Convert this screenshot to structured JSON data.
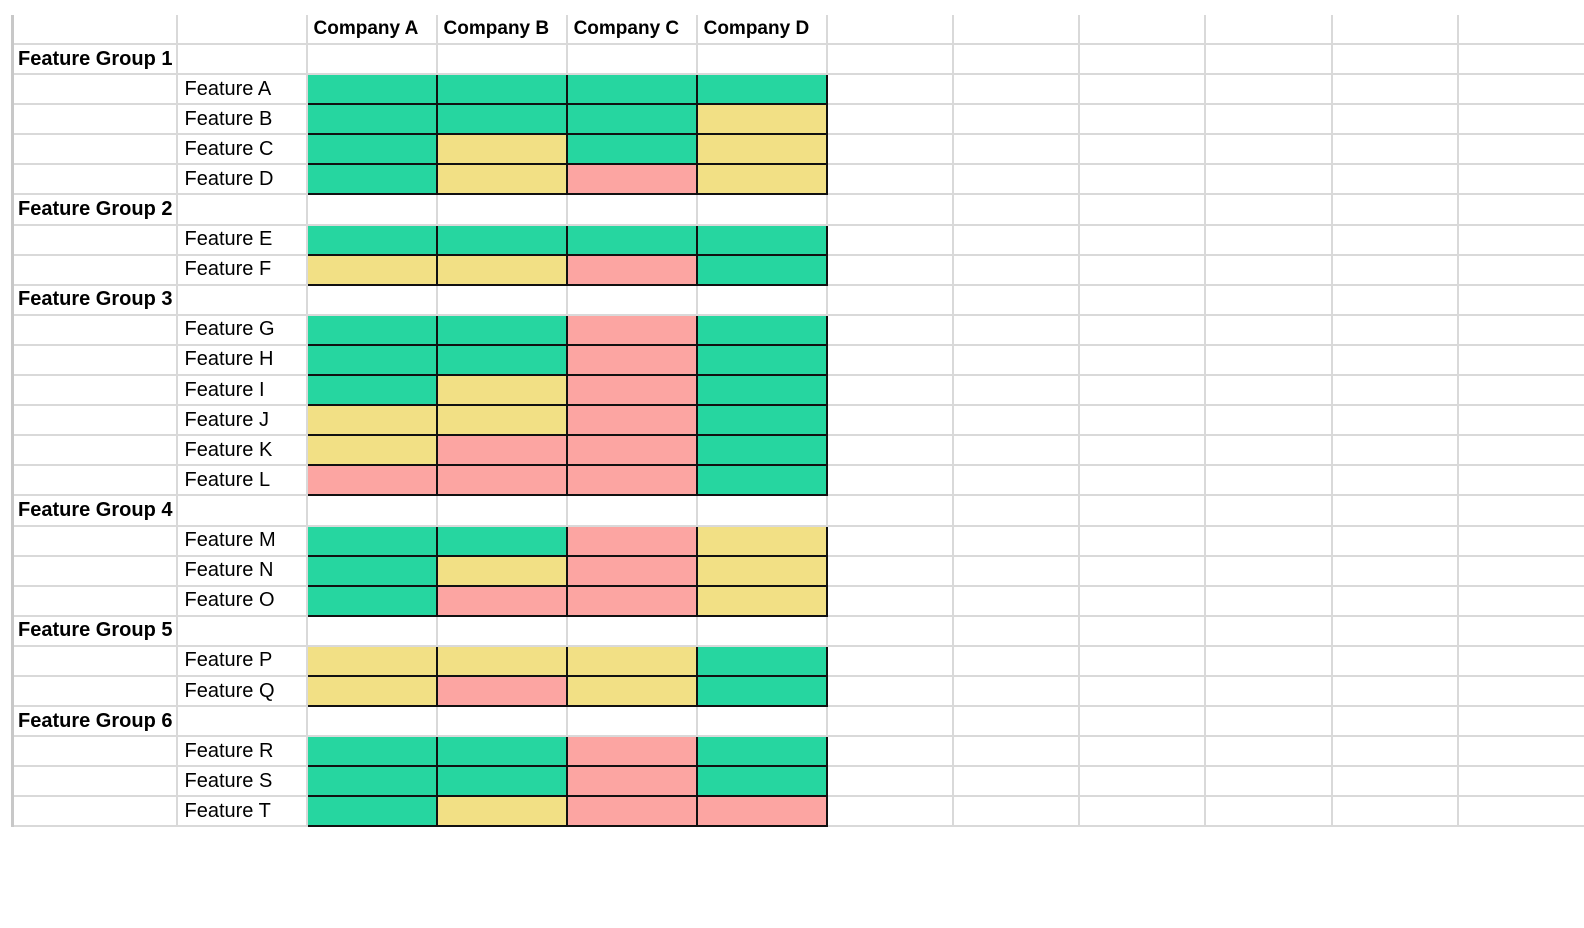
{
  "sheet": {
    "header": {
      "companies": [
        "Company A",
        "Company B",
        "Company C",
        "Company D"
      ]
    },
    "legend_colors": {
      "green": "#26d6a0",
      "yellow": "#f2e085",
      "red": "#fca5a2"
    },
    "groups": [
      {
        "name": "Feature Group 1",
        "features": [
          {
            "name": "Feature A",
            "values": [
              "green",
              "green",
              "green",
              "green"
            ]
          },
          {
            "name": "Feature B",
            "values": [
              "green",
              "green",
              "green",
              "yellow"
            ]
          },
          {
            "name": "Feature C",
            "values": [
              "green",
              "yellow",
              "green",
              "yellow"
            ]
          },
          {
            "name": "Feature D",
            "values": [
              "green",
              "yellow",
              "red",
              "yellow"
            ]
          }
        ]
      },
      {
        "name": "Feature Group 2",
        "features": [
          {
            "name": "Feature E",
            "values": [
              "green",
              "green",
              "green",
              "green"
            ]
          },
          {
            "name": "Feature F",
            "values": [
              "yellow",
              "yellow",
              "red",
              "green"
            ]
          }
        ]
      },
      {
        "name": "Feature Group 3",
        "features": [
          {
            "name": "Feature G",
            "values": [
              "green",
              "green",
              "red",
              "green"
            ]
          },
          {
            "name": "Feature H",
            "values": [
              "green",
              "green",
              "red",
              "green"
            ]
          },
          {
            "name": "Feature I",
            "values": [
              "green",
              "yellow",
              "red",
              "green"
            ]
          },
          {
            "name": "Feature J",
            "values": [
              "yellow",
              "yellow",
              "red",
              "green"
            ]
          },
          {
            "name": "Feature K",
            "values": [
              "yellow",
              "red",
              "red",
              "green"
            ]
          },
          {
            "name": "Feature L",
            "values": [
              "red",
              "red",
              "red",
              "green"
            ]
          }
        ]
      },
      {
        "name": "Feature Group 4",
        "features": [
          {
            "name": "Feature M",
            "values": [
              "green",
              "green",
              "red",
              "yellow"
            ]
          },
          {
            "name": "Feature N",
            "values": [
              "green",
              "yellow",
              "red",
              "yellow"
            ]
          },
          {
            "name": "Feature O",
            "values": [
              "green",
              "red",
              "red",
              "yellow"
            ]
          }
        ]
      },
      {
        "name": "Feature Group 5",
        "features": [
          {
            "name": "Feature P",
            "values": [
              "yellow",
              "yellow",
              "yellow",
              "green"
            ]
          },
          {
            "name": "Feature Q",
            "values": [
              "yellow",
              "red",
              "yellow",
              "green"
            ]
          }
        ]
      },
      {
        "name": "Feature Group 6",
        "features": [
          {
            "name": "Feature R",
            "values": [
              "green",
              "green",
              "red",
              "green"
            ]
          },
          {
            "name": "Feature S",
            "values": [
              "green",
              "green",
              "red",
              "green"
            ]
          },
          {
            "name": "Feature T",
            "values": [
              "green",
              "yellow",
              "red",
              "red"
            ]
          }
        ]
      }
    ],
    "empty_columns": 6
  }
}
